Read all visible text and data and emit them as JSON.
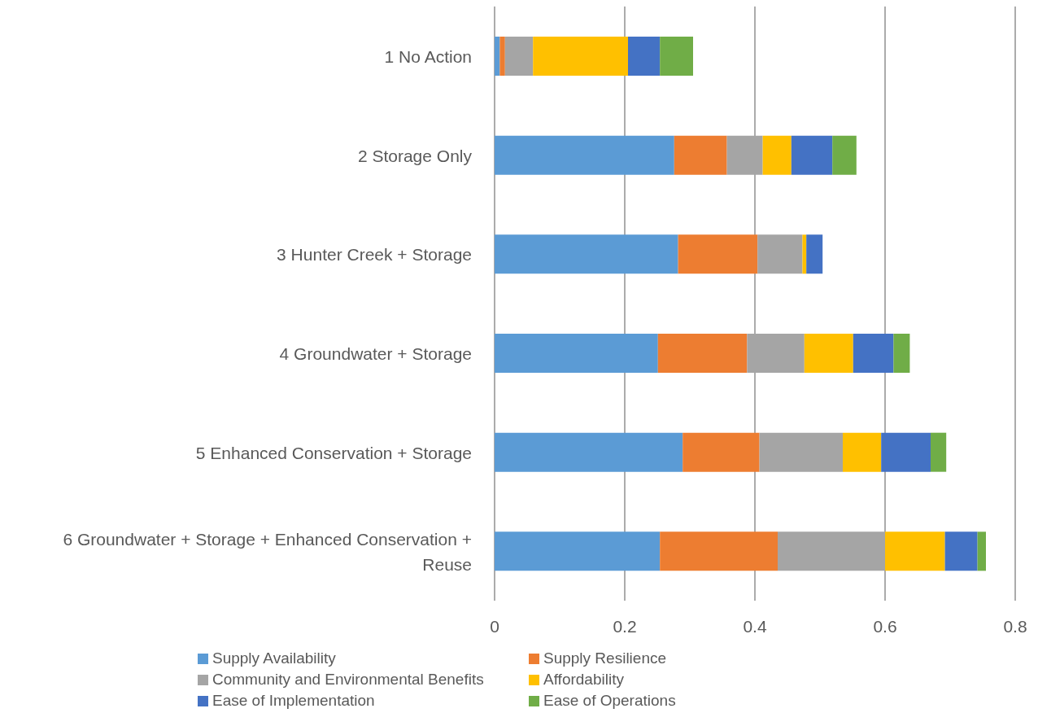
{
  "chart_data": {
    "type": "bar",
    "orientation": "horizontal",
    "stacked": true,
    "categories": [
      "1 No Action",
      "2 Storage Only",
      "3 Hunter Creek + Storage",
      "4 Groundwater + Storage",
      "5 Enhanced Conservation + Storage",
      "6 Groundwater + Storage + Enhanced Conservation + Reuse"
    ],
    "series": [
      {
        "name": "Supply Availability",
        "color": "#5b9bd5",
        "values": [
          0.008,
          0.276,
          0.282,
          0.251,
          0.289,
          0.254
        ]
      },
      {
        "name": "Supply Resilience",
        "color": "#ed7d31",
        "values": [
          0.008,
          0.081,
          0.122,
          0.137,
          0.118,
          0.181
        ]
      },
      {
        "name": "Community and Environmental Benefits",
        "color": "#a5a5a5",
        "values": [
          0.043,
          0.055,
          0.069,
          0.088,
          0.128,
          0.165
        ]
      },
      {
        "name": "Affordability",
        "color": "#ffc000",
        "values": [
          0.146,
          0.044,
          0.006,
          0.075,
          0.059,
          0.092
        ]
      },
      {
        "name": "Ease of Implementation",
        "color": "#4472c4",
        "values": [
          0.049,
          0.063,
          0.025,
          0.062,
          0.076,
          0.05
        ]
      },
      {
        "name": "Ease of Operations",
        "color": "#70ad47",
        "values": [
          0.051,
          0.037,
          0,
          0.025,
          0.024,
          0.013
        ]
      }
    ],
    "xlim": [
      0,
      0.8
    ],
    "xticks": [
      0,
      0.2,
      0.4,
      0.6,
      0.8
    ],
    "grid": "x",
    "legend": "bottom"
  }
}
